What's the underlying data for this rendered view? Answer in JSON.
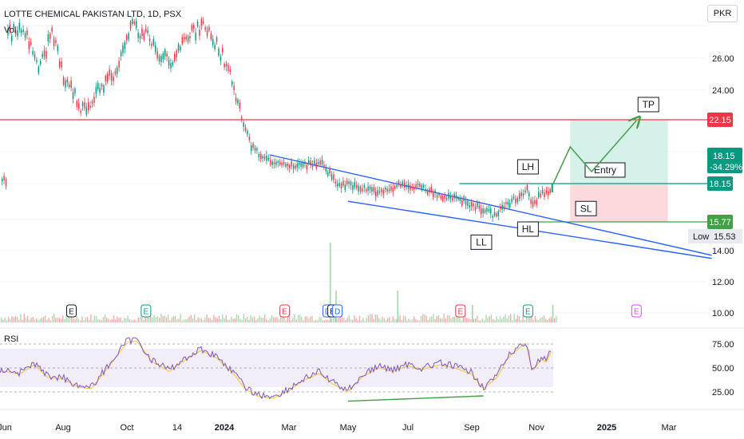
{
  "header": {
    "title": "LOTTE CHEMICAL PAKISTAN LTD, 1D, PSX",
    "vol_label": "Vol",
    "currency": "PKR"
  },
  "chart_data": {
    "type": "candlestick",
    "symbol": "LOTTE CHEMICAL PAKISTAN LTD",
    "interval": "1D",
    "exchange": "PSX",
    "currency": "PKR",
    "price_axis_ticks": [
      "26.00",
      "24.00",
      "14.00",
      "12.00",
      "10.00"
    ],
    "time_axis_ticks": [
      "Jun",
      "Aug",
      "Oct",
      "14",
      "2024",
      "Mar",
      "May",
      "Jul",
      "Sep",
      "Nov",
      "2025",
      "Mar"
    ],
    "price_series": [
      {
        "date": "2023-06-01",
        "price": 27.6
      },
      {
        "date": "2023-06-20",
        "price": 27.8
      },
      {
        "date": "2023-07-05",
        "price": 25.3
      },
      {
        "date": "2023-07-20",
        "price": 27.7
      },
      {
        "date": "2023-08-01",
        "price": 24.9
      },
      {
        "date": "2023-08-10",
        "price": 24.0
      },
      {
        "date": "2023-08-20",
        "price": 22.6
      },
      {
        "date": "2023-09-01",
        "price": 23.8
      },
      {
        "date": "2023-09-15",
        "price": 24.8
      },
      {
        "date": "2023-09-25",
        "price": 26.0
      },
      {
        "date": "2023-10-05",
        "price": 28.1
      },
      {
        "date": "2023-10-20",
        "price": 27.4
      },
      {
        "date": "2023-11-01",
        "price": 26.1
      },
      {
        "date": "2023-11-10",
        "price": 25.8
      },
      {
        "date": "2023-11-20",
        "price": 26.7
      },
      {
        "date": "2023-12-01",
        "price": 27.7
      },
      {
        "date": "2023-12-15",
        "price": 28.0
      },
      {
        "date": "2023-12-25",
        "price": 26.8
      },
      {
        "date": "2024-01-05",
        "price": 25.2
      },
      {
        "date": "2024-01-15",
        "price": 22.7
      },
      {
        "date": "2024-01-25",
        "price": 20.6
      },
      {
        "date": "2024-02-10",
        "price": 19.5
      },
      {
        "date": "2024-03-01",
        "price": 19.4
      },
      {
        "date": "2024-03-20",
        "price": 19.3
      },
      {
        "date": "2024-04-01",
        "price": 19.5
      },
      {
        "date": "2024-04-20",
        "price": 18.2
      },
      {
        "date": "2024-05-10",
        "price": 17.9
      },
      {
        "date": "2024-06-01",
        "price": 17.6
      },
      {
        "date": "2024-06-20",
        "price": 18.0
      },
      {
        "date": "2024-07-10",
        "price": 18.0
      },
      {
        "date": "2024-08-01",
        "price": 17.4
      },
      {
        "date": "2024-08-20",
        "price": 17.2
      },
      {
        "date": "2024-09-05",
        "price": 16.7
      },
      {
        "date": "2024-09-20",
        "price": 16.2
      },
      {
        "date": "2024-10-01",
        "price": 16.7
      },
      {
        "date": "2024-10-15",
        "price": 17.3
      },
      {
        "date": "2024-10-22",
        "price": 17.8
      },
      {
        "date": "2024-10-28",
        "price": 16.9
      },
      {
        "date": "2024-11-05",
        "price": 17.5
      },
      {
        "date": "2024-11-12",
        "price": 17.6
      },
      {
        "date": "2024-11-15",
        "price": 18.15
      }
    ],
    "volume_spikes": [
      {
        "date": "2024-04-12",
        "value": "max"
      },
      {
        "date": "2024-04-18",
        "value": "medium"
      },
      {
        "date": "2024-06-20",
        "value": "medium"
      },
      {
        "date": "2024-09-01",
        "value": "small"
      },
      {
        "date": "2024-11-15",
        "value": "small"
      }
    ],
    "events": [
      {
        "date": "2023-08-09",
        "label": "E",
        "color": "#131722"
      },
      {
        "date": "2023-10-19",
        "label": "E",
        "color": "#089981"
      },
      {
        "date": "2024-02-26",
        "label": "E",
        "color": "#f23645"
      },
      {
        "date": "2024-04-10",
        "label": "D",
        "color": "#2962ff"
      },
      {
        "date": "2024-04-15",
        "label": "E",
        "color": "#131722"
      },
      {
        "date": "2024-04-20",
        "label": "D",
        "color": "#2962ff"
      },
      {
        "date": "2024-08-21",
        "label": "E",
        "color": "#f23645"
      },
      {
        "date": "2024-10-24",
        "label": "E",
        "color": "#089981"
      },
      {
        "date": "2025-01-30",
        "label": "E",
        "color": "#e040fb"
      }
    ],
    "horizontal_levels": [
      {
        "price": 22.15,
        "label": "22.15",
        "color": "#f23645"
      },
      {
        "price": 18.15,
        "label": "18.15",
        "color": "#089981"
      },
      {
        "price": 15.77,
        "label": "15.77",
        "color": "#43a047"
      }
    ],
    "last_price": {
      "value": "18.15",
      "change": "-34.29%"
    },
    "low": {
      "label": "Low",
      "value": "15.53"
    },
    "wedge": {
      "upper_line": {
        "from": {
          "date": "2024-02-12",
          "price": 19.95
        },
        "to": {
          "date": "2025-04-10",
          "price": 13.7
        }
      },
      "lower_line": {
        "from": {
          "date": "2024-05-01",
          "price": 17.05
        },
        "to": {
          "date": "2025-04-10",
          "price": 13.5
        }
      }
    },
    "annotations": [
      {
        "label": "LH",
        "date": "2024-10-24",
        "price": 19.2
      },
      {
        "label": "HL",
        "date": "2024-10-24",
        "price": 15.65
      },
      {
        "label": "LL",
        "date": "2024-09-10",
        "price": 14.9
      },
      {
        "label": "Entry",
        "date": "2025-01-01",
        "price": 19.0
      },
      {
        "label": "TP",
        "date": "2025-02-10",
        "price": 23.1
      },
      {
        "label": "SL",
        "date": "2024-12-15",
        "price": 16.6
      }
    ],
    "trade_setup": {
      "start_date": "2024-12-01",
      "end_date": "2025-02-28",
      "entry": 18.15,
      "target": 22.15,
      "stop": 15.77
    },
    "rsi": {
      "label": "RSI",
      "ticks": [
        "75.00",
        "50.00",
        "25.00"
      ],
      "overbought": 70,
      "oversold": 30,
      "values": [
        {
          "date": "2023-06-01",
          "value": 48
        },
        {
          "date": "2023-06-15",
          "value": 45
        },
        {
          "date": "2023-07-01",
          "value": 55
        },
        {
          "date": "2023-07-15",
          "value": 42
        },
        {
          "date": "2023-08-01",
          "value": 40
        },
        {
          "date": "2023-08-15",
          "value": 32
        },
        {
          "date": "2023-08-28",
          "value": 30
        },
        {
          "date": "2023-09-15",
          "value": 55
        },
        {
          "date": "2023-10-01",
          "value": 78
        },
        {
          "date": "2023-10-10",
          "value": 80
        },
        {
          "date": "2023-10-25",
          "value": 58
        },
        {
          "date": "2023-11-10",
          "value": 48
        },
        {
          "date": "2023-11-25",
          "value": 60
        },
        {
          "date": "2023-12-10",
          "value": 70
        },
        {
          "date": "2023-12-25",
          "value": 62
        },
        {
          "date": "2024-01-10",
          "value": 45
        },
        {
          "date": "2024-01-20",
          "value": 30
        },
        {
          "date": "2024-02-01",
          "value": 22
        },
        {
          "date": "2024-02-15",
          "value": 20
        },
        {
          "date": "2024-03-01",
          "value": 28
        },
        {
          "date": "2024-03-15",
          "value": 38
        },
        {
          "date": "2024-04-01",
          "value": 46
        },
        {
          "date": "2024-04-15",
          "value": 35
        },
        {
          "date": "2024-05-01",
          "value": 27
        },
        {
          "date": "2024-05-15",
          "value": 42
        },
        {
          "date": "2024-06-01",
          "value": 52
        },
        {
          "date": "2024-06-15",
          "value": 48
        },
        {
          "date": "2024-07-01",
          "value": 54
        },
        {
          "date": "2024-07-15",
          "value": 50
        },
        {
          "date": "2024-08-01",
          "value": 55
        },
        {
          "date": "2024-08-15",
          "value": 52
        },
        {
          "date": "2024-09-01",
          "value": 45
        },
        {
          "date": "2024-09-12",
          "value": 30
        },
        {
          "date": "2024-09-25",
          "value": 42
        },
        {
          "date": "2024-10-05",
          "value": 62
        },
        {
          "date": "2024-10-15",
          "value": 72
        },
        {
          "date": "2024-10-22",
          "value": 78
        },
        {
          "date": "2024-10-28",
          "value": 48
        },
        {
          "date": "2024-11-05",
          "value": 60
        },
        {
          "date": "2024-11-10",
          "value": 58
        },
        {
          "date": "2024-11-15",
          "value": 72
        }
      ],
      "divergence_line": {
        "from": {
          "date": "2024-05-01",
          "value": 27
        },
        "to": {
          "date": "2024-09-12",
          "value": 30
        }
      }
    }
  }
}
